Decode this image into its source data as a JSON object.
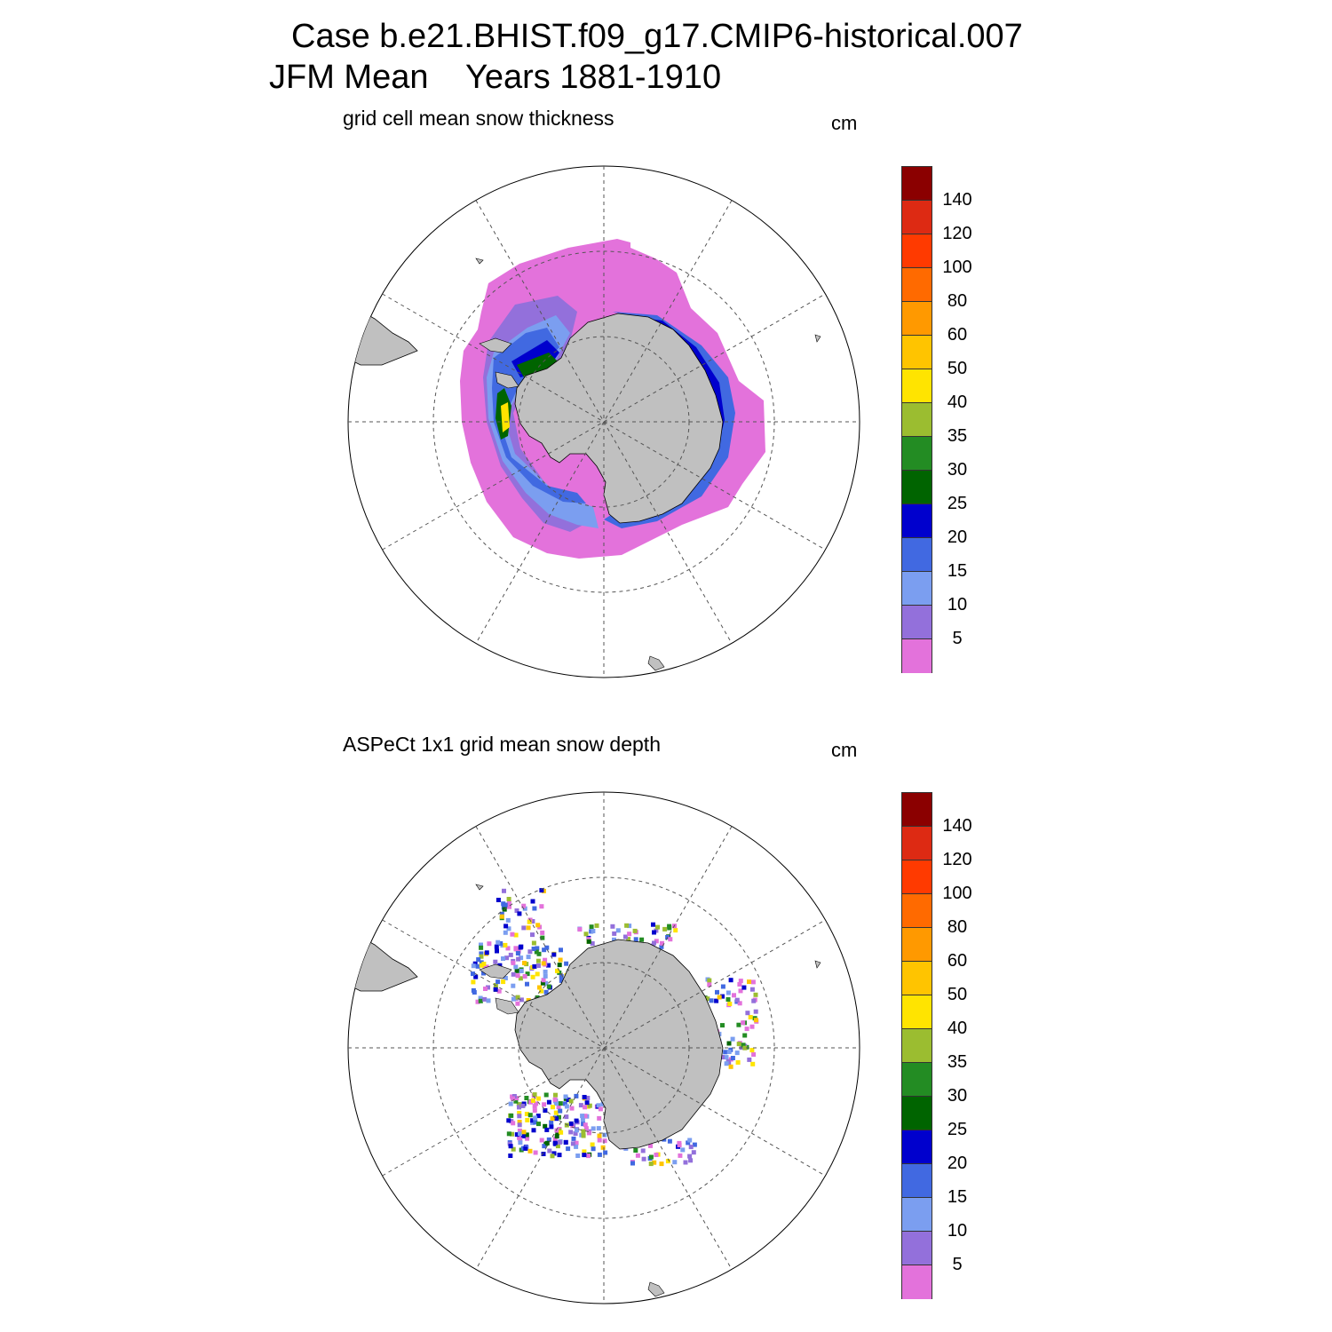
{
  "title": {
    "line1": "Case b.e21.BHIST.f09_g17.CMIP6-historical.007",
    "line2": "JFM Mean    Years 1881-1910"
  },
  "panels": [
    {
      "id": "model",
      "label": "grid cell mean snow thickness",
      "units": "cm"
    },
    {
      "id": "obs",
      "label": "ASPeCt 1x1 grid mean snow depth",
      "units": "cm"
    }
  ],
  "colorbar": {
    "labels": [
      "140",
      "120",
      "100",
      "80",
      "60",
      "50",
      "40",
      "35",
      "30",
      "25",
      "20",
      "15",
      "10",
      "5"
    ],
    "colors": [
      "#8b0000",
      "#dd2a13",
      "#ff3a00",
      "#ff6a00",
      "#ff9900",
      "#ffc400",
      "#ffe400",
      "#9bbd30",
      "#238c23",
      "#006400",
      "#0000cd",
      "#4169e1",
      "#7b9ef0",
      "#9370db",
      "#e372db"
    ]
  },
  "map_colors": {
    "land": "#c0c0c0",
    "ocean": "#ffffff",
    "grid": "#555555"
  },
  "icons": [
    "antarctica-landmass",
    "south-america-landmass",
    "new-zealand-landmass",
    "polar-graticule"
  ]
}
